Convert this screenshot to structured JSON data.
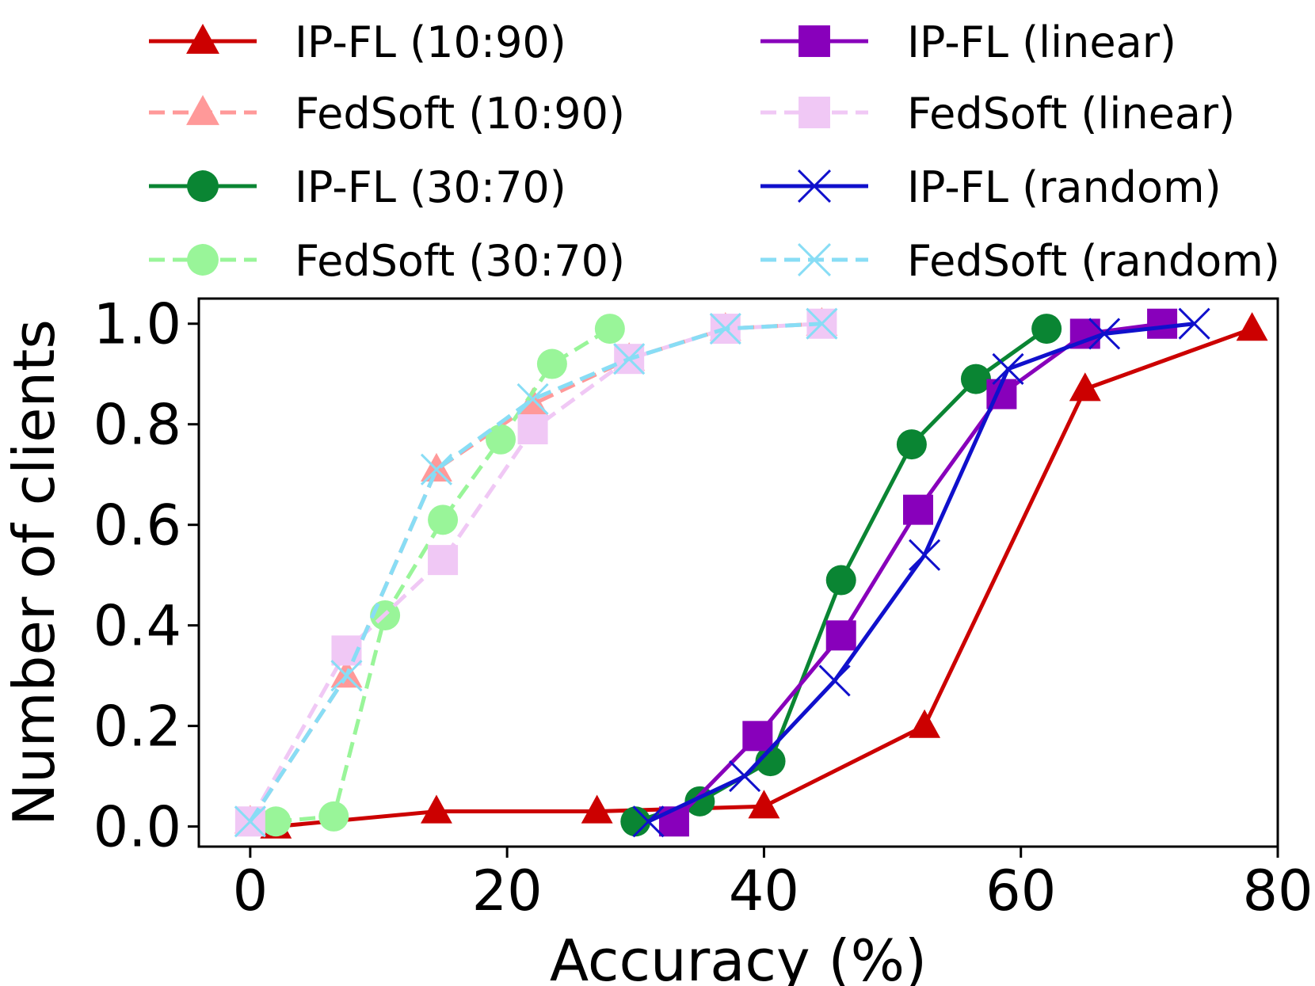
{
  "chart_data": {
    "type": "line",
    "title": "",
    "xlabel": "Accuracy (%)",
    "ylabel": "Number of clients",
    "xlim": [
      -4,
      80
    ],
    "ylim": [
      -0.04,
      1.05
    ],
    "xticks": [
      0,
      20,
      40,
      60,
      80
    ],
    "yticks": [
      0.0,
      0.2,
      0.4,
      0.6,
      0.8,
      1.0
    ],
    "xtick_labels": [
      "0",
      "20",
      "40",
      "60",
      "80"
    ],
    "ytick_labels": [
      "0.0",
      "0.2",
      "0.4",
      "0.6",
      "0.8",
      "1.0"
    ],
    "grid": false,
    "legend_position": "top (above plot), two columns",
    "series": [
      {
        "name": "IP-FL (10:90)",
        "color": "#cc0000",
        "dash": "solid",
        "marker": "triangle",
        "x": [
          2,
          14.5,
          27,
          40,
          52.5,
          65,
          78
        ],
        "y": [
          0.0,
          0.03,
          0.03,
          0.04,
          0.2,
          0.87,
          0.99
        ]
      },
      {
        "name": "FedSoft (10:90)",
        "color": "#ff9999",
        "dash": "dashed",
        "marker": "triangle",
        "x": [
          0,
          7.5,
          14.5,
          22,
          29.5,
          37,
          44.5
        ],
        "y": [
          0.01,
          0.3,
          0.71,
          0.84,
          0.93,
          0.99,
          1.0
        ]
      },
      {
        "name": "IP-FL (30:70)",
        "color": "#0a8533",
        "dash": "solid",
        "marker": "circle",
        "x": [
          30,
          35,
          40.5,
          46,
          51.5,
          56.5,
          62
        ],
        "y": [
          0.01,
          0.05,
          0.13,
          0.49,
          0.76,
          0.89,
          0.99
        ]
      },
      {
        "name": "FedSoft (30:70)",
        "color": "#99f599",
        "dash": "dashed",
        "marker": "circle",
        "x": [
          2,
          6.5,
          10.5,
          15,
          19.5,
          23.5,
          28
        ],
        "y": [
          0.01,
          0.02,
          0.42,
          0.61,
          0.77,
          0.92,
          0.99
        ]
      },
      {
        "name": "IP-FL (linear)",
        "color": "#8800bb",
        "dash": "solid",
        "marker": "square",
        "x": [
          33,
          39.5,
          46,
          52,
          58.5,
          65,
          71
        ],
        "y": [
          0.01,
          0.18,
          0.38,
          0.63,
          0.86,
          0.98,
          1.0
        ]
      },
      {
        "name": "FedSoft (linear)",
        "color": "#f0c8f5",
        "dash": "dashed",
        "marker": "square",
        "x": [
          0,
          7.5,
          15,
          22,
          29.5,
          37,
          44.5
        ],
        "y": [
          0.01,
          0.35,
          0.53,
          0.79,
          0.93,
          0.99,
          1.0
        ]
      },
      {
        "name": "IP-FL (random)",
        "color": "#1010cc",
        "dash": "solid",
        "marker": "x",
        "x": [
          31,
          38.5,
          45.5,
          52.5,
          59,
          66.5,
          73.5
        ],
        "y": [
          0.01,
          0.1,
          0.29,
          0.54,
          0.91,
          0.98,
          1.0
        ]
      },
      {
        "name": "FedSoft (random)",
        "color": "#88ddf5",
        "dash": "dashed",
        "marker": "x",
        "x": [
          0,
          7.5,
          14.5,
          22,
          29.5,
          37,
          44.5
        ],
        "y": [
          0.01,
          0.3,
          0.71,
          0.85,
          0.93,
          0.99,
          1.0
        ]
      }
    ]
  }
}
